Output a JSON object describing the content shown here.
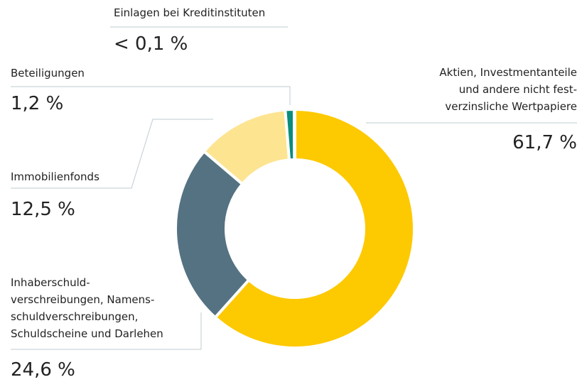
{
  "chart_data": {
    "type": "donut",
    "categories": [
      "Aktien, Investmentanteile\nund andere nicht fest-\nverzinsliche Wertpapiere",
      "Inhaberschuld-\nverschreibungen, Namens-\nschuldverschreibungen,\nSchuldscheine und Darlehen",
      "Immobilienfonds",
      "Beteiligungen",
      "Einlagen bei Kreditinstituten"
    ],
    "values": [
      61.7,
      24.6,
      12.5,
      1.2,
      0.1
    ],
    "value_labels": [
      "61,7 %",
      "24,6 %",
      "12,5 %",
      "1,2 %",
      "< 0,1 %"
    ],
    "colors": [
      "#fdc900",
      "#557282",
      "#fde491",
      "#0b8c7c",
      "#2d5f6f"
    ]
  }
}
